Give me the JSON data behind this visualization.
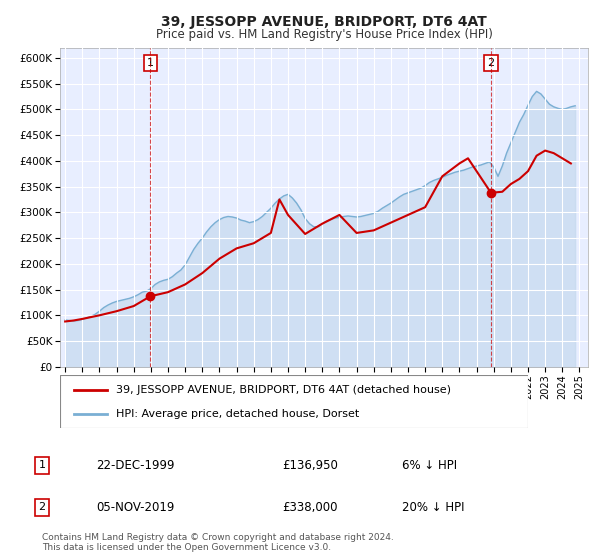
{
  "title": "39, JESSOPP AVENUE, BRIDPORT, DT6 4AT",
  "subtitle": "Price paid vs. HM Land Registry's House Price Index (HPI)",
  "ylim": [
    0,
    620000
  ],
  "xlim": [
    1994.7,
    2025.5
  ],
  "yticks": [
    0,
    50000,
    100000,
    150000,
    200000,
    250000,
    300000,
    350000,
    400000,
    450000,
    500000,
    550000,
    600000
  ],
  "ytick_labels": [
    "£0",
    "£50K",
    "£100K",
    "£150K",
    "£200K",
    "£250K",
    "£300K",
    "£350K",
    "£400K",
    "£450K",
    "£500K",
    "£550K",
    "£600K"
  ],
  "xticks": [
    1995,
    1996,
    1997,
    1998,
    1999,
    2000,
    2001,
    2002,
    2003,
    2004,
    2005,
    2006,
    2007,
    2008,
    2009,
    2010,
    2011,
    2012,
    2013,
    2014,
    2015,
    2016,
    2017,
    2018,
    2019,
    2020,
    2021,
    2022,
    2023,
    2024,
    2025
  ],
  "background_color": "#e8eeff",
  "grid_color": "#ffffff",
  "red_line_color": "#cc0000",
  "blue_line_color": "#7aafd4",
  "blue_fill_color": "#c5d9ee",
  "marker1_x": 1999.97,
  "marker1_y": 136950,
  "marker2_x": 2019.84,
  "marker2_y": 338000,
  "vline1_x": 1999.97,
  "vline2_x": 2019.84,
  "legend_label1": "39, JESSOPP AVENUE, BRIDPORT, DT6 4AT (detached house)",
  "legend_label2": "HPI: Average price, detached house, Dorset",
  "annotation1_label": "1",
  "annotation2_label": "2",
  "info1_num": "1",
  "info1_date": "22-DEC-1999",
  "info1_price": "£136,950",
  "info1_hpi": "6% ↓ HPI",
  "info2_num": "2",
  "info2_date": "05-NOV-2019",
  "info2_price": "£338,000",
  "info2_hpi": "20% ↓ HPI",
  "footer": "Contains HM Land Registry data © Crown copyright and database right 2024.\nThis data is licensed under the Open Government Licence v3.0.",
  "hpi_data_x": [
    1995.0,
    1995.25,
    1995.5,
    1995.75,
    1996.0,
    1996.25,
    1996.5,
    1996.75,
    1997.0,
    1997.25,
    1997.5,
    1997.75,
    1998.0,
    1998.25,
    1998.5,
    1998.75,
    1999.0,
    1999.25,
    1999.5,
    1999.75,
    2000.0,
    2000.25,
    2000.5,
    2000.75,
    2001.0,
    2001.25,
    2001.5,
    2001.75,
    2002.0,
    2002.25,
    2002.5,
    2002.75,
    2003.0,
    2003.25,
    2003.5,
    2003.75,
    2004.0,
    2004.25,
    2004.5,
    2004.75,
    2005.0,
    2005.25,
    2005.5,
    2005.75,
    2006.0,
    2006.25,
    2006.5,
    2006.75,
    2007.0,
    2007.25,
    2007.5,
    2007.75,
    2008.0,
    2008.25,
    2008.5,
    2008.75,
    2009.0,
    2009.25,
    2009.5,
    2009.75,
    2010.0,
    2010.25,
    2010.5,
    2010.75,
    2011.0,
    2011.25,
    2011.5,
    2011.75,
    2012.0,
    2012.25,
    2012.5,
    2012.75,
    2013.0,
    2013.25,
    2013.5,
    2013.75,
    2014.0,
    2014.25,
    2014.5,
    2014.75,
    2015.0,
    2015.25,
    2015.5,
    2015.75,
    2016.0,
    2016.25,
    2016.5,
    2016.75,
    2017.0,
    2017.25,
    2017.5,
    2017.75,
    2018.0,
    2018.25,
    2018.5,
    2018.75,
    2019.0,
    2019.25,
    2019.5,
    2019.75,
    2020.0,
    2020.25,
    2020.5,
    2020.75,
    2021.0,
    2021.25,
    2021.5,
    2021.75,
    2022.0,
    2022.25,
    2022.5,
    2022.75,
    2023.0,
    2023.25,
    2023.5,
    2023.75,
    2024.0,
    2024.25,
    2024.5,
    2024.75
  ],
  "hpi_data_y": [
    91000,
    90000,
    89000,
    90000,
    92000,
    95000,
    98000,
    102000,
    108000,
    115000,
    120000,
    124000,
    127000,
    129000,
    131000,
    133000,
    136000,
    140000,
    145000,
    147000,
    152000,
    160000,
    165000,
    168000,
    170000,
    175000,
    182000,
    188000,
    198000,
    213000,
    228000,
    240000,
    250000,
    262000,
    272000,
    280000,
    286000,
    290000,
    292000,
    291000,
    289000,
    285000,
    283000,
    280000,
    282000,
    286000,
    292000,
    300000,
    308000,
    318000,
    326000,
    332000,
    335000,
    328000,
    318000,
    305000,
    288000,
    278000,
    272000,
    272000,
    278000,
    283000,
    286000,
    289000,
    290000,
    292000,
    293000,
    292000,
    291000,
    292000,
    294000,
    296000,
    298000,
    302000,
    308000,
    313000,
    318000,
    324000,
    330000,
    335000,
    338000,
    341000,
    344000,
    347000,
    352000,
    358000,
    362000,
    365000,
    368000,
    372000,
    375000,
    378000,
    380000,
    382000,
    385000,
    388000,
    390000,
    392000,
    395000,
    398000,
    388000,
    370000,
    390000,
    415000,
    435000,
    455000,
    475000,
    490000,
    508000,
    525000,
    535000,
    530000,
    520000,
    510000,
    505000,
    502000,
    500000,
    502000,
    505000,
    507000
  ],
  "price_data_x": [
    1995.0,
    1995.5,
    1996.0,
    1997.0,
    1998.0,
    1999.0,
    1999.97,
    2001.0,
    2002.0,
    2003.0,
    2004.0,
    2005.0,
    2006.0,
    2007.0,
    2007.5,
    2008.0,
    2009.0,
    2010.0,
    2011.0,
    2012.0,
    2013.0,
    2014.0,
    2015.0,
    2016.0,
    2017.0,
    2018.0,
    2018.5,
    2019.84,
    2020.5,
    2021.0,
    2021.5,
    2022.0,
    2022.5,
    2023.0,
    2023.5,
    2024.0,
    2024.5
  ],
  "price_data_y": [
    88000,
    90000,
    93000,
    100000,
    108000,
    118000,
    136950,
    145000,
    160000,
    182000,
    210000,
    230000,
    240000,
    260000,
    325000,
    295000,
    258000,
    278000,
    295000,
    260000,
    265000,
    280000,
    295000,
    310000,
    370000,
    395000,
    405000,
    338000,
    340000,
    355000,
    365000,
    380000,
    410000,
    420000,
    415000,
    405000,
    395000
  ]
}
